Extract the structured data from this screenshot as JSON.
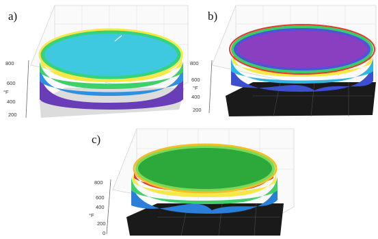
{
  "panels": [
    {
      "label": "a)",
      "unit": "°F",
      "ticks": [
        "800",
        "600",
        "400",
        "200"
      ],
      "colors": {
        "top": "#3ec9e0",
        "rim": "#f7e84a",
        "base": "#6a3db8"
      }
    },
    {
      "label": "b)",
      "unit": "°F",
      "ticks": [
        "800",
        "600",
        "400",
        "200"
      ],
      "colors": {
        "top": "#8a3fc1",
        "rim": "#f06b2a",
        "base": "#3b4fd0"
      }
    },
    {
      "label": "c)",
      "unit": "°F",
      "ticks": [
        "800",
        "600",
        "400",
        "200",
        "0"
      ],
      "colors": {
        "top": "#2da83a",
        "rim": "#e8372b",
        "base": "#2a7fd8"
      }
    }
  ]
}
